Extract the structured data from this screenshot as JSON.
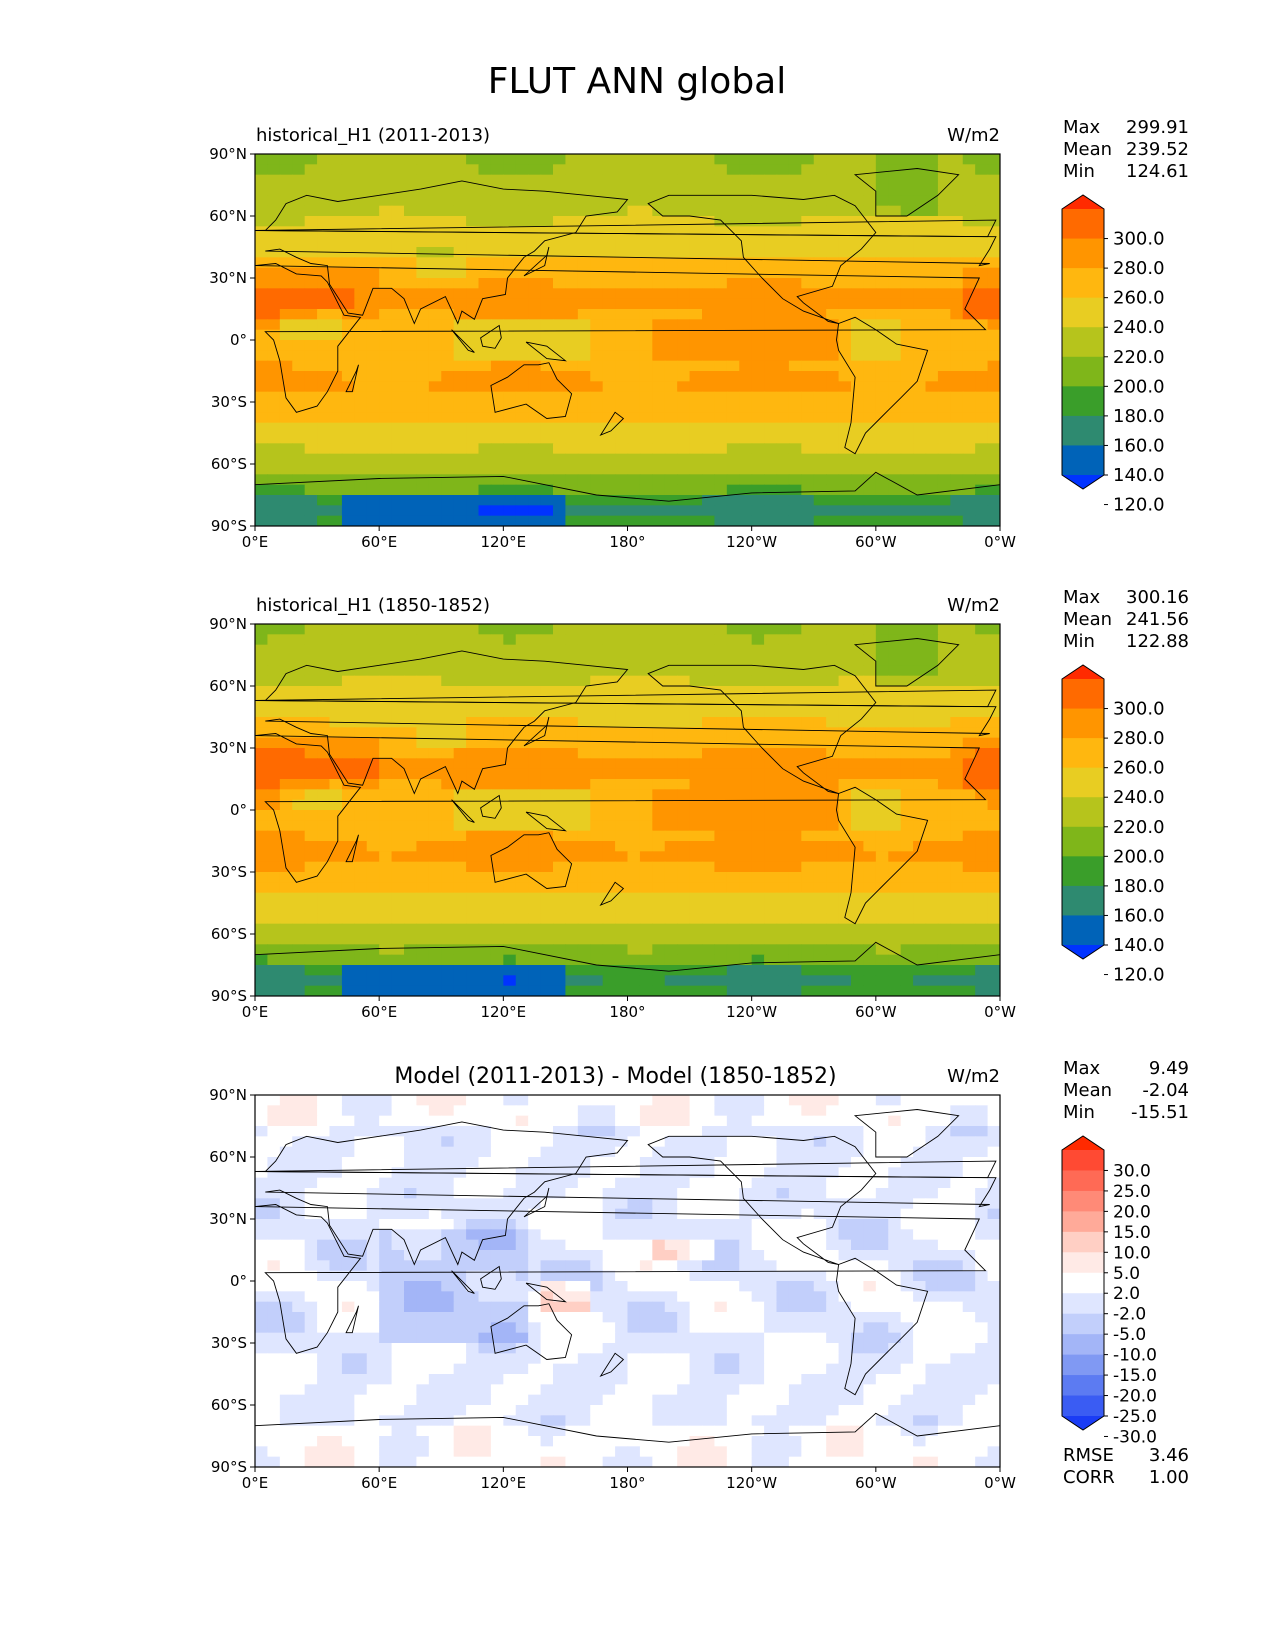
{
  "figure_title": "FLUT ANN global",
  "chart_data": [
    {
      "type": "heatmap",
      "title": "historical_H1 (2011-2013)",
      "units": "W/m2",
      "stats": [
        {
          "label": "Max",
          "value": "299.91"
        },
        {
          "label": "Mean",
          "value": "239.52"
        },
        {
          "label": "Min",
          "value": "124.61"
        }
      ],
      "x_ticks": [
        "0°E",
        "60°E",
        "120°E",
        "180°",
        "120°W",
        "60°W",
        "0°W"
      ],
      "y_ticks": [
        "90°N",
        "60°N",
        "30°N",
        "0°",
        "30°S",
        "60°S",
        "90°S"
      ],
      "xlim": [
        0,
        360
      ],
      "ylim": [
        -90,
        90
      ],
      "colorbar": {
        "levels": [
          "300.0",
          "280.0",
          "260.0",
          "240.0",
          "220.0",
          "200.0",
          "180.0",
          "160.0",
          "140.0",
          "120.0"
        ],
        "colors": [
          "#ff2a00",
          "#ff6a00",
          "#ff9500",
          "#ffb70f",
          "#e8cd22",
          "#b6c41c",
          "#7fb61a",
          "#3a9e2a",
          "#2e8a70",
          "#0063b8",
          "#0033ff"
        ]
      }
    },
    {
      "type": "heatmap",
      "title": "historical_H1 (1850-1852)",
      "units": "W/m2",
      "stats": [
        {
          "label": "Max",
          "value": "300.16"
        },
        {
          "label": "Mean",
          "value": "241.56"
        },
        {
          "label": "Min",
          "value": "122.88"
        }
      ],
      "x_ticks": [
        "0°E",
        "60°E",
        "120°E",
        "180°",
        "120°W",
        "60°W",
        "0°W"
      ],
      "y_ticks": [
        "90°N",
        "60°N",
        "30°N",
        "0°",
        "30°S",
        "60°S",
        "90°S"
      ],
      "xlim": [
        0,
        360
      ],
      "ylim": [
        -90,
        90
      ],
      "colorbar": {
        "levels": [
          "300.0",
          "280.0",
          "260.0",
          "240.0",
          "220.0",
          "200.0",
          "180.0",
          "160.0",
          "140.0",
          "120.0"
        ],
        "colors": [
          "#ff2a00",
          "#ff6a00",
          "#ff9500",
          "#ffb70f",
          "#e8cd22",
          "#b6c41c",
          "#7fb61a",
          "#3a9e2a",
          "#2e8a70",
          "#0063b8",
          "#0033ff"
        ]
      }
    },
    {
      "type": "heatmap",
      "title": "Model (2011-2013) - Model (1850-1852)",
      "units": "W/m2",
      "stats": [
        {
          "label": "Max",
          "value": "9.49"
        },
        {
          "label": "Mean",
          "value": "-2.04"
        },
        {
          "label": "Min",
          "value": "-15.51"
        }
      ],
      "extra_stats": [
        {
          "label": "RMSE",
          "value": "3.46"
        },
        {
          "label": "CORR",
          "value": "1.00"
        }
      ],
      "x_ticks": [
        "0°E",
        "60°E",
        "120°E",
        "180°",
        "120°W",
        "60°W",
        "0°W"
      ],
      "y_ticks": [
        "90°N",
        "60°N",
        "30°N",
        "0°",
        "30°S",
        "60°S",
        "90°S"
      ],
      "xlim": [
        0,
        360
      ],
      "ylim": [
        -90,
        90
      ],
      "colorbar": {
        "levels": [
          "30.0",
          "25.0",
          "20.0",
          "15.0",
          "10.0",
          "5.0",
          "2.0",
          "-2.0",
          "-5.0",
          "-10.0",
          "-15.0",
          "-20.0",
          "-25.0",
          "-30.0"
        ],
        "colors": [
          "#ff2a00",
          "#ff4a33",
          "#ff6a55",
          "#ff8a77",
          "#ffaa99",
          "#ffcfc4",
          "#ffeae6",
          "#ffffff",
          "#dfe6ff",
          "#c2cffb",
          "#a3b5f7",
          "#8099f3",
          "#5c7bf2",
          "#3a5cf3",
          "#1a3cf5"
        ]
      }
    }
  ]
}
